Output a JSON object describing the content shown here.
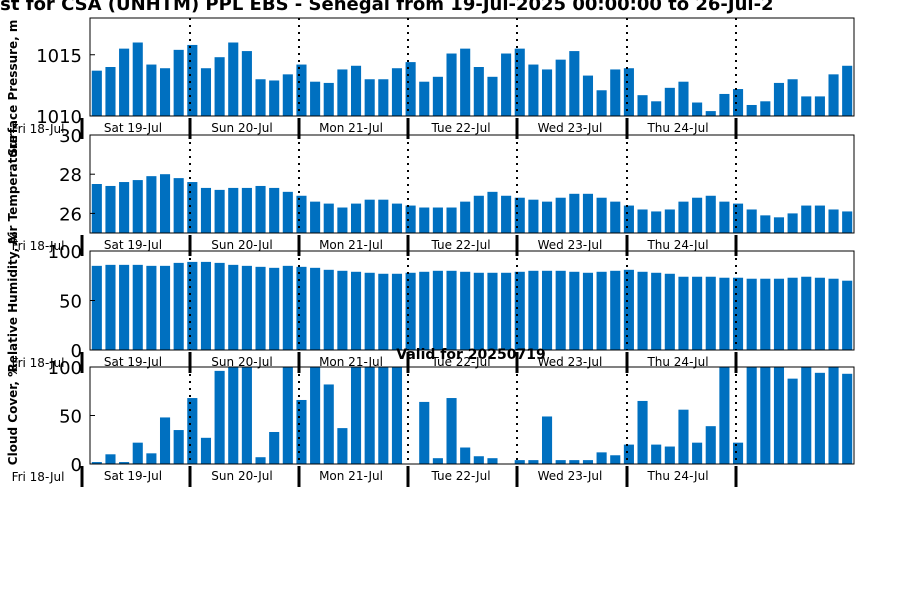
{
  "page": {
    "title": "ast for CSA (UNHTM) PPL EBS  - Senegal from 19-Jul-2025 00:00:00 to 26-Jul-2",
    "valid_label": "Valid for 20250719"
  },
  "colors": {
    "bar": "#0070c0",
    "axis": "#000000"
  },
  "day_labels": [
    "Fri 18-Jul",
    "Sat 19-Jul",
    "Sun 20-Jul",
    "Mon 21-Jul",
    "Tue 22-Jul",
    "Wed 23-Jul",
    "Thu 24-Jul"
  ],
  "chart_data": [
    {
      "type": "bar",
      "ylabel": "Surface Pressure, m",
      "ylim": [
        1010,
        1018
      ],
      "yticks": [
        "1010",
        "1015"
      ],
      "series": [
        {
          "values": [
            1013.7,
            1014.0,
            1015.5,
            1016.0,
            1014.2,
            1013.9,
            1015.4,
            1015.8,
            1013.9,
            1014.8,
            1016.0,
            1015.3,
            1013.0,
            1012.9,
            1013.4,
            1014.2,
            1012.8,
            1012.7,
            1013.8,
            1014.1,
            1013.0,
            1013.0,
            1013.9,
            1014.4,
            1012.8,
            1013.2,
            1015.1,
            1015.5,
            1014.0,
            1013.2,
            1015.1,
            1015.5,
            1014.2,
            1013.8,
            1014.6,
            1015.3,
            1013.3,
            1012.1,
            1013.8,
            1013.9,
            1011.7,
            1011.2,
            1012.3,
            1012.8,
            1011.1,
            1010.4,
            1011.8,
            1012.2,
            1010.9,
            1011.2,
            1012.7,
            1013.0,
            1011.6,
            1011.6,
            1013.4,
            1014.1
          ]
        }
      ],
      "grid": false,
      "legend": "none"
    },
    {
      "type": "bar",
      "ylabel": "Air Temperature",
      "ylim": [
        25,
        30
      ],
      "yticks": [
        "26",
        "28",
        "30"
      ],
      "series": [
        {
          "values": [
            27.5,
            27.4,
            27.6,
            27.7,
            27.9,
            28.0,
            27.8,
            27.6,
            27.3,
            27.2,
            27.3,
            27.3,
            27.4,
            27.3,
            27.1,
            26.9,
            26.6,
            26.5,
            26.3,
            26.5,
            26.7,
            26.7,
            26.5,
            26.4,
            26.3,
            26.3,
            26.3,
            26.6,
            26.9,
            27.1,
            26.9,
            26.8,
            26.7,
            26.6,
            26.8,
            27.0,
            27.0,
            26.8,
            26.6,
            26.4,
            26.2,
            26.1,
            26.2,
            26.6,
            26.8,
            26.9,
            26.6,
            26.5,
            26.2,
            25.9,
            25.8,
            26.0,
            26.4,
            26.4,
            26.2,
            26.1
          ]
        }
      ],
      "grid": false,
      "legend": "none"
    },
    {
      "type": "bar",
      "ylabel": "Relative Humidity, %",
      "ylim": [
        0,
        100
      ],
      "yticks": [
        "0",
        "50",
        "100"
      ],
      "series": [
        {
          "values": [
            85,
            86,
            86,
            86,
            85,
            85,
            88,
            89,
            89,
            88,
            86,
            85,
            84,
            83,
            85,
            84,
            83,
            81,
            80,
            79,
            78,
            77,
            77,
            78,
            79,
            80,
            80,
            79,
            78,
            78,
            78,
            79,
            80,
            80,
            80,
            79,
            78,
            79,
            80,
            81,
            79,
            78,
            77,
            74,
            74,
            74,
            73,
            73,
            72,
            72,
            72,
            73,
            74,
            73,
            72,
            70
          ]
        }
      ],
      "grid": false,
      "legend": "none"
    },
    {
      "type": "bar",
      "ylabel": "Cloud Cover, %",
      "ylim": [
        0,
        100
      ],
      "yticks": [
        "0",
        "50",
        "100"
      ],
      "series": [
        {
          "values": [
            2,
            10,
            2,
            22,
            11,
            48,
            35,
            68,
            27,
            96,
            100,
            100,
            7,
            33,
            100,
            66,
            100,
            82,
            37,
            100,
            100,
            100,
            100,
            0,
            64,
            6,
            68,
            17,
            8,
            6,
            0,
            4,
            4,
            49,
            4,
            4,
            4,
            12,
            9,
            20,
            65,
            20,
            18,
            56,
            22,
            39,
            100,
            22,
            100,
            100,
            100,
            88,
            100,
            94,
            100,
            93
          ]
        }
      ],
      "grid": false,
      "legend": "none"
    }
  ]
}
